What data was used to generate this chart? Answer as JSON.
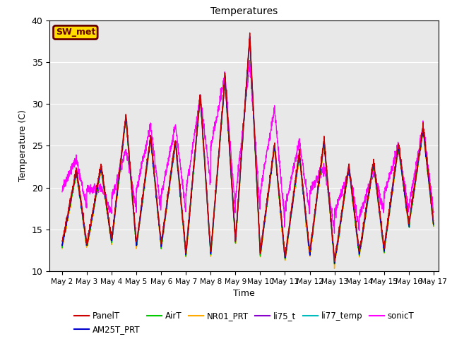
{
  "title": "Temperatures",
  "xlabel": "Time",
  "ylabel": "Temperature (C)",
  "ylim": [
    10,
    40
  ],
  "xlim": [
    1.5,
    17.2
  ],
  "xtick_labels": [
    "May 2",
    "May 3",
    "May 4",
    "May 5",
    "May 6",
    "May 7",
    "May 8",
    "May 9",
    "May 10",
    "May 11",
    "May 12",
    "May 13",
    "May 14",
    "May 15",
    "May 16",
    "May 17"
  ],
  "xtick_positions": [
    2,
    3,
    4,
    5,
    6,
    7,
    8,
    9,
    10,
    11,
    12,
    13,
    14,
    15,
    16,
    17
  ],
  "ytick_positions": [
    10,
    15,
    20,
    25,
    30,
    35,
    40
  ],
  "series": {
    "PanelT": {
      "color": "#cc0000",
      "lw": 1.0
    },
    "AM25T_PRT": {
      "color": "#0000cc",
      "lw": 1.0
    },
    "AirT": {
      "color": "#00cc00",
      "lw": 1.0
    },
    "NR01_PRT": {
      "color": "#ffaa00",
      "lw": 1.0
    },
    "li75_t": {
      "color": "#8800cc",
      "lw": 1.0
    },
    "li77_temp": {
      "color": "#00bbbb",
      "lw": 1.0
    },
    "sonicT": {
      "color": "#ff00ff",
      "lw": 1.0
    }
  },
  "legend_order": [
    "PanelT",
    "AM25T_PRT",
    "AirT",
    "NR01_PRT",
    "li75_t",
    "li77_temp",
    "sonicT"
  ],
  "station_label": "SW_met",
  "station_label_bg": "#ffdd00",
  "station_label_border": "#660000",
  "bg_color": "#e8e8e8",
  "day_peaks": [
    22,
    22.5,
    28.5,
    26,
    25.5,
    31,
    33,
    38,
    25,
    24,
    25.5,
    22.5,
    23,
    25,
    27
  ],
  "day_valleys": [
    13,
    13,
    13.5,
    13,
    13,
    12,
    12,
    13.5,
    12,
    11.5,
    12,
    11,
    12,
    12.5,
    15.5
  ],
  "sonic_peaks": [
    23.5,
    20,
    24.5,
    27.5,
    27.5,
    31,
    33.5,
    35,
    29.5,
    25.5,
    22.5,
    22,
    22,
    25,
    27.5
  ],
  "sonic_valleys": [
    17.5,
    17.5,
    17,
    17.5,
    17,
    17,
    20.5,
    17,
    17,
    15.5,
    17,
    15,
    15,
    17,
    17
  ]
}
